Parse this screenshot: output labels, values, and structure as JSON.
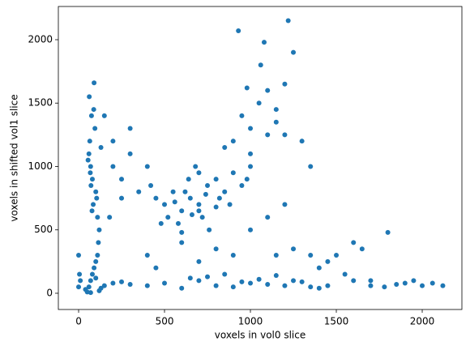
{
  "chart_data": {
    "type": "scatter",
    "x_label": "voxels in vol0 slice",
    "y_label": "voxels in shifted vol1 slice",
    "color": "#1f77b4",
    "x": [
      60,
      70,
      80,
      65,
      75,
      90,
      100,
      85,
      110,
      120,
      55,
      68,
      72,
      95,
      105,
      130,
      78,
      88,
      62,
      115,
      50,
      60,
      70,
      80,
      90,
      100,
      110,
      120,
      150,
      200,
      0,
      0,
      5,
      10,
      40,
      70,
      100,
      130,
      300,
      250,
      400,
      500,
      600,
      700,
      800,
      900,
      1000,
      1100,
      1200,
      1300,
      1400,
      1450,
      650,
      750,
      850,
      950,
      1050,
      1150,
      1250,
      1350,
      500,
      550,
      600,
      650,
      700,
      750,
      800,
      850,
      900,
      950,
      520,
      580,
      640,
      680,
      720,
      760,
      820,
      880,
      620,
      700,
      450,
      480,
      560,
      660,
      740,
      800,
      980,
      1000,
      700,
      600,
      900,
      950,
      1000,
      1050,
      1100,
      1150,
      1200,
      1250,
      930,
      1080,
      1220,
      1000,
      1100,
      1300,
      1350,
      1150,
      980,
      1060,
      1200,
      850,
      1400,
      1500,
      1600,
      1700,
      1800,
      1900,
      2000,
      2060,
      2120,
      1550,
      1650,
      1450,
      1350,
      1250,
      1780,
      1600,
      1700,
      1850,
      1950,
      1150,
      400,
      450,
      600,
      700,
      800,
      900,
      300,
      250,
      200,
      350,
      150,
      200,
      250,
      300,
      400,
      180,
      420,
      1000,
      1100,
      1200
    ],
    "values": [
      1100,
      1000,
      900,
      1200,
      1400,
      1660,
      800,
      700,
      600,
      500,
      1050,
      950,
      850,
      1300,
      750,
      1150,
      650,
      1450,
      1550,
      400,
      10,
      50,
      100,
      150,
      200,
      250,
      300,
      20,
      60,
      80,
      50,
      300,
      150,
      100,
      30,
      5,
      120,
      40,
      70,
      90,
      60,
      80,
      40,
      100,
      60,
      50,
      80,
      70,
      60,
      90,
      40,
      60,
      120,
      130,
      150,
      90,
      110,
      140,
      100,
      50,
      700,
      800,
      650,
      750,
      700,
      850,
      900,
      800,
      950,
      850,
      600,
      550,
      900,
      1000,
      600,
      500,
      750,
      700,
      800,
      650,
      750,
      550,
      720,
      620,
      780,
      680,
      900,
      1000,
      950,
      480,
      1200,
      1400,
      1300,
      1500,
      1600,
      1350,
      1650,
      1900,
      2070,
      1980,
      2150,
      1100,
      1250,
      1200,
      1000,
      1450,
      1620,
      1800,
      1250,
      1150,
      200,
      300,
      400,
      100,
      480,
      80,
      60,
      80,
      60,
      150,
      350,
      250,
      300,
      350,
      50,
      100,
      60,
      70,
      100,
      300,
      300,
      200,
      400,
      250,
      350,
      300,
      1300,
      900,
      1000,
      800,
      1400,
      1200,
      750,
      1100,
      1000,
      600,
      850,
      500,
      600,
      700
    ],
    "xlim": [
      -118,
      2231
    ],
    "ylim": [
      -128,
      2262
    ],
    "xticks": [
      0,
      500,
      1000,
      1500,
      2000
    ],
    "yticks": [
      0,
      500,
      1000,
      1500,
      2000
    ]
  }
}
